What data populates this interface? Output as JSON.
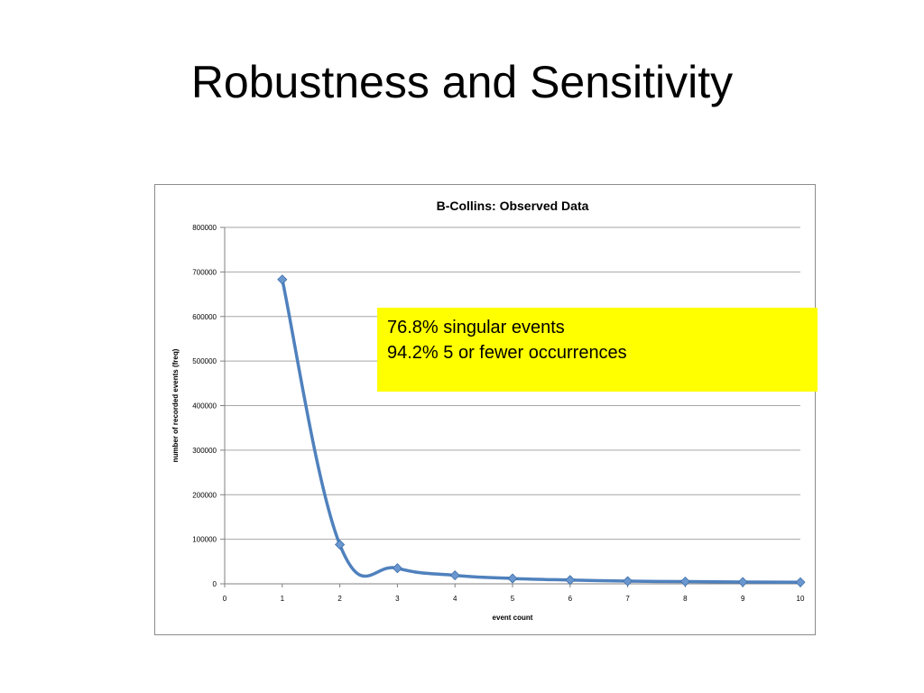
{
  "slide": {
    "title": "Robustness and Sensitivity"
  },
  "chart_data": {
    "type": "line",
    "title": "B-Collins: Observed Data",
    "xlabel": "event count",
    "ylabel": "number of recorded events (freq)",
    "x": [
      1,
      2,
      3,
      4,
      5,
      6,
      7,
      8,
      9,
      10
    ],
    "series": [
      {
        "values": [
          683000,
          88000,
          35000,
          19000,
          12000,
          8500,
          6000,
          5000,
          4000,
          3500
        ]
      }
    ],
    "xlim": [
      0,
      10
    ],
    "ylim": [
      0,
      800000
    ],
    "xticks": [
      0,
      1,
      2,
      3,
      4,
      5,
      6,
      7,
      8,
      9,
      10
    ],
    "yticks": [
      0,
      100000,
      200000,
      300000,
      400000,
      500000,
      600000,
      700000,
      800000
    ],
    "grid": "horizontal",
    "line_color": "#4f81bd",
    "marker_color": "#6a97cf"
  },
  "callout": {
    "line1": "76.8% singular events",
    "line2": "94.2% 5 or fewer occurrences",
    "color": "#ffff00"
  }
}
